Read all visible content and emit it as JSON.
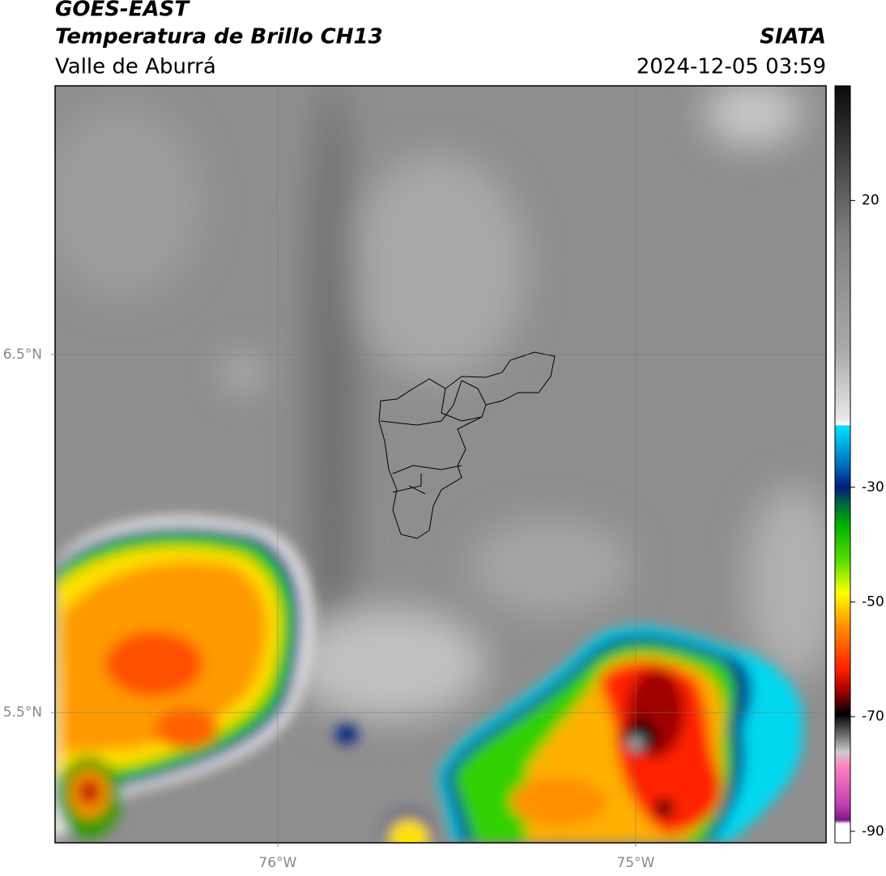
{
  "header": {
    "title": "GOES-EAST",
    "subtitle": "Temperatura de Brillo CH13",
    "region": "Valle de Aburrá",
    "source": "SIATA",
    "datetime": "2024-12-05 03:59"
  },
  "map": {
    "xlim": [
      -76.622,
      -74.468
    ],
    "ylim": [
      5.136,
      7.251
    ],
    "xticks": [
      {
        "value": -76,
        "label": "76°W"
      },
      {
        "value": -75,
        "label": "75°W"
      }
    ],
    "yticks": [
      {
        "value": 6.5,
        "label": "6.5°N"
      },
      {
        "value": 5.5,
        "label": "5.5°N"
      }
    ],
    "grid": true
  },
  "colorbar": {
    "lim": [
      -92,
      40
    ],
    "ticks": [
      20,
      -30,
      -50,
      -70,
      -90
    ]
  }
}
